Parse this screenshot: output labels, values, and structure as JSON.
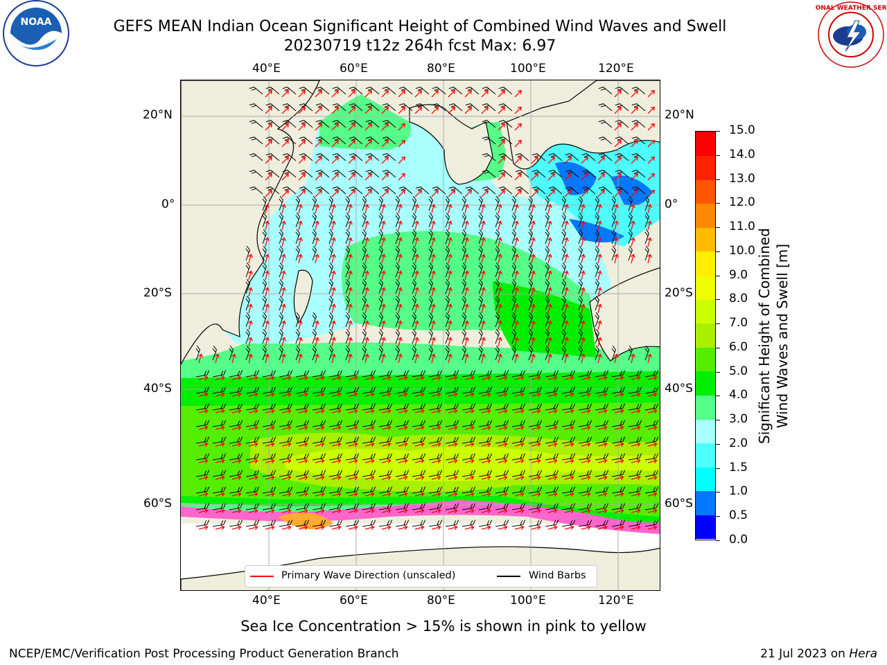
{
  "title": {
    "line1": "GEFS MEAN Indian Ocean Significant Height of Combined Wind Waves and Swell",
    "line2": "20230719 t12z 264h fcst   Max: 6.97"
  },
  "map": {
    "lon_labels": [
      "40°E",
      "60°E",
      "80°E",
      "100°E",
      "120°E"
    ],
    "lat_labels": [
      "20°N",
      "0°",
      "20°S",
      "40°S",
      "60°S"
    ],
    "lon_range": [
      20,
      130
    ],
    "lat_range": [
      -90,
      27
    ]
  },
  "colorbar": {
    "label_line1": "Significant Height of Combined",
    "label_line2": "Wind Waves and Swell [m]",
    "ticks": [
      "0.0",
      "0.5",
      "1.0",
      "1.5",
      "2.0",
      "3.0",
      "4.0",
      "5.0",
      "6.0",
      "7.0",
      "8.0",
      "9.0",
      "10.0",
      "11.0",
      "12.0",
      "13.0",
      "14.0",
      "15.0"
    ],
    "colors": [
      "#0000ff",
      "#0078ff",
      "#00ffff",
      "#4dffff",
      "#aaffff",
      "#55ff88",
      "#00ee00",
      "#55ee00",
      "#aaee00",
      "#ccff00",
      "#eeff00",
      "#ffee00",
      "#ffbb00",
      "#ff8800",
      "#ff5500",
      "#ff2200",
      "#ff0000"
    ]
  },
  "legend": {
    "wave_label": "Primary Wave Direction (unscaled)",
    "wave_color": "#ff0000",
    "barb_label": "Wind Barbs",
    "barb_color": "#000000"
  },
  "footer": {
    "note": "Sea Ice Concentration > 15% is shown in pink to yellow",
    "left": "NCEP/EMC/Verification Post Processing Product Generation Branch",
    "right_prefix": "21 Jul 2023 on",
    "right_host": "Hera"
  },
  "logos": {
    "noaa_text": "NOAA",
    "nws_text": "NATIONAL WEATHER SERVICE"
  }
}
